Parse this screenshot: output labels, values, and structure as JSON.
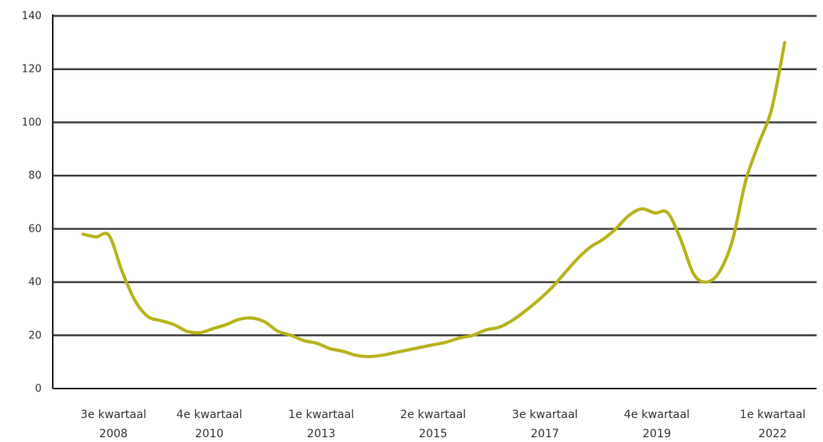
{
  "chart_data": {
    "type": "line",
    "title": "",
    "xlabel": "",
    "ylabel": "",
    "ylim": [
      0,
      140
    ],
    "yticks": [
      0,
      20,
      40,
      60,
      80,
      100,
      120,
      140
    ],
    "grid": true,
    "legend": "none",
    "colors": {
      "line": "#b7b21a",
      "grid": "#222222",
      "axis": "#222222"
    },
    "x_tick_labels": [
      {
        "line1": "3e kwartaal",
        "line2": "2008"
      },
      {
        "line1": "4e kwartaal",
        "line2": "2010"
      },
      {
        "line1": "1e kwartaal",
        "line2": "2013"
      },
      {
        "line1": "2e kwartaal",
        "line2": "2015"
      },
      {
        "line1": "3e kwartaal",
        "line2": "2017"
      },
      {
        "line1": "4e kwartaal",
        "line2": "2019"
      },
      {
        "line1": "1e kwartaal",
        "line2": "2022"
      }
    ],
    "series": [
      {
        "values": [
          58,
          57,
          57.5,
          44,
          33,
          27,
          25.5,
          24,
          21.5,
          21,
          22.5,
          24,
          26,
          26.5,
          25,
          21.5,
          20,
          18,
          17,
          15,
          14,
          12.5,
          12,
          12.5,
          13.5,
          14.5,
          15.5,
          16.5,
          17.5,
          19,
          20,
          22,
          23,
          25.5,
          29,
          33,
          37.5,
          43,
          48.5,
          53,
          56,
          60,
          65,
          67.5,
          66,
          66,
          56,
          43,
          40,
          44,
          56,
          78,
          92,
          105,
          130
        ]
      }
    ]
  }
}
